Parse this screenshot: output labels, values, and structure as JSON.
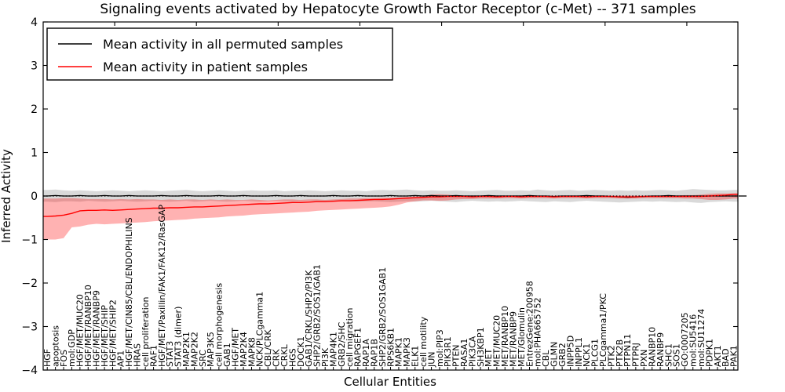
{
  "figure": {
    "title": "Signaling events activated by Hepatocyte Growth Factor Receptor (c-Met) -- 371 samples",
    "xlabel": "Cellular Entities",
    "ylabel": "Inferred Activity"
  },
  "legend": {
    "items": [
      {
        "label": "Mean activity in all permuted samples",
        "color": "#000000"
      },
      {
        "label": "Mean activity in patient samples",
        "color": "#ff0000"
      }
    ]
  },
  "colors": {
    "permuted_line": "#000000",
    "patient_line": "#ff0000",
    "permuted_band": "rgba(0,0,0,0.15)",
    "patient_band": "rgba(255,0,0,0.30)",
    "axes": "#000000",
    "background": "#ffffff"
  },
  "chart_data": {
    "type": "line",
    "title": "Signaling events activated by Hepatocyte Growth Factor Receptor (c-Met) -- 371 samples",
    "xlabel": "Cellular Entities",
    "ylabel": "Inferred Activity",
    "ylim": [
      -4,
      4
    ],
    "yticks": [
      -4,
      -3,
      -2,
      -1,
      0,
      1,
      2,
      3,
      4
    ],
    "grid": false,
    "legend_position": "upper left",
    "zero_line_dotted": true,
    "categories": [
      "HGF",
      "apoptosis",
      "FOS",
      "mol:GDP",
      "HGF/MET/MUC20",
      "HGF/MET/RANBP10",
      "HGF/MET/RANBP9",
      "HGF/MET/SHIP",
      "HGF/MET/SHIP2",
      "AP1",
      "HGF/MET/CIN85/CBL/ENDOPHILINS",
      "HRAS",
      "cell proliferation",
      "RAF1",
      "HGF/MET/Paxillin/FAK1/FAK12/RasGAP",
      "STAT3",
      "STAT3 (dimer)",
      "MAP2K1",
      "MAP2K2",
      "SRC",
      "MAP3K5",
      "cell morphogenesis",
      "GAB1",
      "HGF/MET",
      "MAP2K4",
      "MAPK8",
      "NCK/PLCgamma1",
      "CBL/CRK",
      "CRK",
      "CRKL",
      "HGS",
      "DOCK1",
      "GAB1/CRKL/SHP2/PI3K",
      "SHP2/GRB2/SOS1/GAB1",
      "PI3K",
      "MAP4K1",
      "GRB2/SHC",
      "cell migration",
      "RAPGEF1",
      "RAP1A",
      "RAP1B",
      "SHP2/GRB2/SOS1GAB1",
      "RPS6KB1",
      "MAPK1",
      "MAPK3",
      "ELK1",
      "cell motility",
      "JUN",
      "mol:PIP3",
      "PIK3R1",
      "PTEN",
      "RASA1",
      "PIK3CA",
      "SH3KBP1",
      "MET",
      "MET/MUC20",
      "MET/RANBP10",
      "MET/RANBP9",
      "MET/Glomulin",
      "EntrezGene:200958",
      "mol:PHA665752",
      "CBL",
      "GLMN",
      "GRB2",
      "INPP5D",
      "INPPL1",
      "NCK1",
      "PLCG1",
      "PLCgamma1/PKC",
      "PTK2",
      "PTK2B",
      "PTPN11",
      "PTPRJ",
      "PXN",
      "RANBP10",
      "RANBP9",
      "SHC1",
      "SOS1",
      "GO:0007205",
      "mol:SU5416",
      "mol:SU11274",
      "PDPK1",
      "AKT1",
      "BAD",
      "PAK1"
    ],
    "series": [
      {
        "name": "Mean activity in all permuted samples",
        "color": "#000000",
        "band_color": "rgba(0,0,0,0.15)",
        "values": [
          0.0,
          0.01,
          0.0,
          0.0,
          0.01,
          0.0,
          0.0,
          0.01,
          0.0,
          0.0,
          0.01,
          0.0,
          0.0,
          0.0,
          0.01,
          0.0,
          0.0,
          0.01,
          0.0,
          0.0,
          0.0,
          0.01,
          0.0,
          0.0,
          0.01,
          0.0,
          0.0,
          0.0,
          0.01,
          0.0,
          0.0,
          0.01,
          0.0,
          0.0,
          0.0,
          0.01,
          0.0,
          0.0,
          0.01,
          0.0,
          0.0,
          0.0,
          0.01,
          0.0,
          0.0,
          0.01,
          0.0,
          0.01,
          0.0,
          0.0,
          0.01,
          0.0,
          0.0,
          0.0,
          0.01,
          0.0,
          0.0,
          0.0,
          0.0,
          0.01,
          0.0,
          0.0,
          -0.01,
          0.0,
          0.0,
          0.0,
          0.01,
          0.0,
          0.0,
          -0.01,
          -0.02,
          -0.03,
          -0.02,
          -0.01,
          0.0,
          0.0,
          0.01,
          0.0,
          0.0,
          0.0,
          0.0,
          0.0,
          0.0,
          0.0,
          0.0
        ],
        "band_upper": [
          0.14,
          0.15,
          0.13,
          0.12,
          0.13,
          0.12,
          0.11,
          0.12,
          0.13,
          0.12,
          0.11,
          0.12,
          0.13,
          0.12,
          0.11,
          0.12,
          0.13,
          0.14,
          0.12,
          0.11,
          0.12,
          0.13,
          0.12,
          0.11,
          0.12,
          0.13,
          0.12,
          0.12,
          0.13,
          0.11,
          0.12,
          0.12,
          0.13,
          0.12,
          0.11,
          0.12,
          0.13,
          0.12,
          0.12,
          0.11,
          0.13,
          0.14,
          0.13,
          0.14,
          0.15,
          0.13,
          0.12,
          0.13,
          0.12,
          0.12,
          0.13,
          0.12,
          0.11,
          0.12,
          0.13,
          0.14,
          0.12,
          0.12,
          0.13,
          0.12,
          0.15,
          0.13,
          0.12,
          0.13,
          0.14,
          0.12,
          0.13,
          0.14,
          0.13,
          0.12,
          0.13,
          0.12,
          0.13,
          0.12,
          0.13,
          0.14,
          0.13,
          0.12,
          0.14,
          0.16,
          0.15,
          0.14,
          0.13,
          0.13,
          0.14
        ],
        "band_lower": [
          -0.13,
          -0.14,
          -0.12,
          -0.12,
          -0.13,
          -0.11,
          -0.12,
          -0.13,
          -0.12,
          -0.11,
          -0.12,
          -0.13,
          -0.12,
          -0.11,
          -0.12,
          -0.13,
          -0.12,
          -0.11,
          -0.13,
          -0.12,
          -0.11,
          -0.12,
          -0.13,
          -0.12,
          -0.11,
          -0.12,
          -0.13,
          -0.12,
          -0.11,
          -0.12,
          -0.13,
          -0.12,
          -0.11,
          -0.12,
          -0.13,
          -0.12,
          -0.11,
          -0.12,
          -0.13,
          -0.12,
          -0.12,
          -0.13,
          -0.14,
          -0.13,
          -0.12,
          -0.13,
          -0.12,
          -0.11,
          -0.12,
          -0.13,
          -0.14,
          -0.12,
          -0.11,
          -0.12,
          -0.13,
          -0.12,
          -0.13,
          -0.12,
          -0.11,
          -0.12,
          -0.13,
          -0.14,
          -0.12,
          -0.13,
          -0.14,
          -0.12,
          -0.11,
          -0.12,
          -0.13,
          -0.14,
          -0.15,
          -0.14,
          -0.13,
          -0.12,
          -0.13,
          -0.12,
          -0.13,
          -0.14,
          -0.13,
          -0.15,
          -0.16,
          -0.14,
          -0.13,
          -0.12,
          -0.13
        ]
      },
      {
        "name": "Mean activity in patient samples",
        "color": "#ff0000",
        "band_color": "rgba(255,0,0,0.30)",
        "values": [
          -0.47,
          -0.46,
          -0.44,
          -0.4,
          -0.34,
          -0.33,
          -0.33,
          -0.32,
          -0.33,
          -0.32,
          -0.31,
          -0.3,
          -0.29,
          -0.28,
          -0.28,
          -0.27,
          -0.27,
          -0.26,
          -0.25,
          -0.25,
          -0.24,
          -0.23,
          -0.22,
          -0.21,
          -0.2,
          -0.19,
          -0.18,
          -0.18,
          -0.17,
          -0.16,
          -0.15,
          -0.15,
          -0.14,
          -0.13,
          -0.13,
          -0.12,
          -0.11,
          -0.11,
          -0.1,
          -0.09,
          -0.08,
          -0.08,
          -0.07,
          -0.06,
          -0.05,
          -0.04,
          -0.03,
          -0.02,
          -0.02,
          -0.01,
          -0.01,
          -0.01,
          -0.02,
          -0.01,
          -0.01,
          -0.02,
          -0.01,
          -0.01,
          -0.02,
          -0.01,
          -0.01,
          -0.01,
          -0.02,
          -0.01,
          -0.01,
          -0.01,
          -0.02,
          -0.01,
          -0.01,
          -0.01,
          -0.02,
          -0.02,
          -0.02,
          -0.01,
          -0.01,
          -0.01,
          -0.01,
          -0.01,
          -0.01,
          -0.01,
          -0.01,
          0.0,
          0.01,
          0.02,
          0.04
        ],
        "band_upper": [
          -0.06,
          -0.06,
          -0.05,
          -0.05,
          -0.06,
          -0.07,
          -0.07,
          -0.07,
          -0.08,
          -0.07,
          -0.08,
          -0.07,
          -0.08,
          -0.08,
          -0.09,
          -0.08,
          -0.09,
          -0.08,
          -0.08,
          -0.09,
          -0.08,
          -0.09,
          -0.08,
          -0.09,
          -0.09,
          -0.08,
          -0.09,
          -0.1,
          -0.09,
          -0.08,
          -0.08,
          -0.09,
          -0.08,
          -0.08,
          -0.09,
          -0.08,
          -0.07,
          -0.06,
          -0.06,
          -0.05,
          -0.05,
          -0.04,
          -0.04,
          -0.03,
          -0.02,
          -0.01,
          0.0,
          0.03,
          0.04,
          0.03,
          0.01,
          0.01,
          0.01,
          0.01,
          0.01,
          0.01,
          0.01,
          0.01,
          0.01,
          0.01,
          0.01,
          0.01,
          0.01,
          0.01,
          0.01,
          0.01,
          0.01,
          0.01,
          0.01,
          0.01,
          0.01,
          0.01,
          0.01,
          0.01,
          0.01,
          0.01,
          0.01,
          0.01,
          0.02,
          0.02,
          0.03,
          0.05,
          0.06,
          0.06,
          0.06
        ],
        "band_lower": [
          -1.0,
          -1.0,
          -0.97,
          -0.72,
          -0.7,
          -0.66,
          -0.64,
          -0.65,
          -0.64,
          -0.63,
          -0.62,
          -0.61,
          -0.6,
          -0.58,
          -0.57,
          -0.56,
          -0.55,
          -0.54,
          -0.52,
          -0.51,
          -0.5,
          -0.49,
          -0.47,
          -0.46,
          -0.45,
          -0.43,
          -0.42,
          -0.41,
          -0.4,
          -0.39,
          -0.38,
          -0.37,
          -0.36,
          -0.34,
          -0.33,
          -0.32,
          -0.31,
          -0.3,
          -0.29,
          -0.28,
          -0.27,
          -0.26,
          -0.24,
          -0.2,
          -0.15,
          -0.12,
          -0.1,
          -0.1,
          -0.11,
          -0.1,
          -0.08,
          -0.07,
          -0.07,
          -0.06,
          -0.06,
          -0.06,
          -0.05,
          -0.05,
          -0.06,
          -0.05,
          -0.05,
          -0.05,
          -0.06,
          -0.05,
          -0.05,
          -0.05,
          -0.06,
          -0.05,
          -0.05,
          -0.05,
          -0.06,
          -0.06,
          -0.06,
          -0.05,
          -0.05,
          -0.05,
          -0.05,
          -0.05,
          -0.06,
          -0.06,
          -0.07,
          -0.09,
          -0.09,
          -0.08,
          -0.06
        ]
      }
    ]
  }
}
